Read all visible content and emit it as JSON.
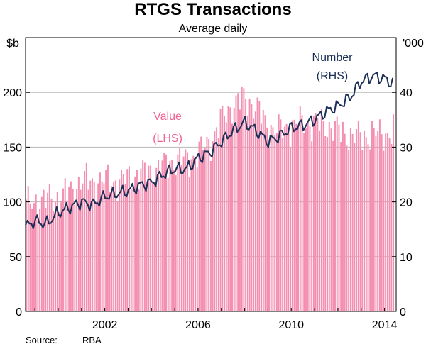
{
  "chart_data": {
    "type": "bar+line",
    "title": "RTGS Transactions",
    "subtitle": "Average daily",
    "left_axis": {
      "unit": "$b",
      "ylim": [
        0,
        250
      ],
      "ticks": [
        0,
        50,
        100,
        150,
        200
      ]
    },
    "right_axis": {
      "unit": "'000",
      "ylim": [
        0,
        50
      ],
      "ticks": [
        0,
        10,
        20,
        30,
        40
      ]
    },
    "x_axis": {
      "xlim": [
        1998.6,
        2014.5
      ],
      "ticks": [
        2002,
        2006,
        2010,
        2014
      ],
      "tick_labels": [
        "2002",
        "2006",
        "2010",
        "2014"
      ]
    },
    "series": [
      {
        "name": "Value",
        "label_line1": "Value",
        "label_line2": "(LHS)",
        "type": "bar",
        "axis": "left",
        "color": "#f48fb1",
        "start_year": 1998.6,
        "frequency": "monthly",
        "anchors": [
          [
            1998.6,
            97
          ],
          [
            1999.0,
            100
          ],
          [
            1999.5,
            102
          ],
          [
            2000.0,
            104
          ],
          [
            2000.5,
            110
          ],
          [
            2001.0,
            120
          ],
          [
            2001.5,
            118
          ],
          [
            2002.0,
            120
          ],
          [
            2002.5,
            118
          ],
          [
            2003.0,
            122
          ],
          [
            2003.5,
            126
          ],
          [
            2004.0,
            128
          ],
          [
            2004.5,
            133
          ],
          [
            2005.0,
            138
          ],
          [
            2005.5,
            138
          ],
          [
            2006.0,
            145
          ],
          [
            2006.5,
            155
          ],
          [
            2007.0,
            175
          ],
          [
            2007.5,
            190
          ],
          [
            2008.0,
            195
          ],
          [
            2008.5,
            185
          ],
          [
            2009.0,
            168
          ],
          [
            2009.5,
            165
          ],
          [
            2010.0,
            170
          ],
          [
            2010.5,
            172
          ],
          [
            2011.0,
            172
          ],
          [
            2011.5,
            170
          ],
          [
            2012.0,
            165
          ],
          [
            2012.5,
            160
          ],
          [
            2013.0,
            160
          ],
          [
            2013.5,
            162
          ],
          [
            2014.0,
            162
          ],
          [
            2014.4,
            165
          ]
        ]
      },
      {
        "name": "Number",
        "label_line1": "Number",
        "label_line2": "(RHS)",
        "type": "line",
        "axis": "right",
        "color": "#1b2f57",
        "start_year": 1998.6,
        "frequency": "monthly",
        "anchors": [
          [
            1998.6,
            15.5
          ],
          [
            1999.0,
            16.5
          ],
          [
            1999.5,
            16.0
          ],
          [
            2000.0,
            18.0
          ],
          [
            2000.5,
            19.0
          ],
          [
            2001.0,
            20.0
          ],
          [
            2001.5,
            19.5
          ],
          [
            2002.0,
            21.0
          ],
          [
            2002.5,
            21.5
          ],
          [
            2003.0,
            22.0
          ],
          [
            2003.5,
            23.0
          ],
          [
            2004.0,
            23.5
          ],
          [
            2004.5,
            25.0
          ],
          [
            2005.0,
            26.0
          ],
          [
            2005.5,
            26.0
          ],
          [
            2006.0,
            28.0
          ],
          [
            2006.5,
            29.0
          ],
          [
            2007.0,
            31.0
          ],
          [
            2007.5,
            33.0
          ],
          [
            2008.0,
            34.5
          ],
          [
            2008.5,
            33.0
          ],
          [
            2009.0,
            31.0
          ],
          [
            2009.5,
            32.0
          ],
          [
            2010.0,
            33.5
          ],
          [
            2010.5,
            34.0
          ],
          [
            2011.0,
            35.0
          ],
          [
            2011.5,
            36.5
          ],
          [
            2012.0,
            37.5
          ],
          [
            2012.5,
            39.0
          ],
          [
            2013.0,
            42.0
          ],
          [
            2013.5,
            43.0
          ],
          [
            2014.0,
            42.5
          ],
          [
            2014.4,
            41.5
          ]
        ]
      }
    ],
    "source_label": "Source:",
    "source_value": "RBA"
  }
}
